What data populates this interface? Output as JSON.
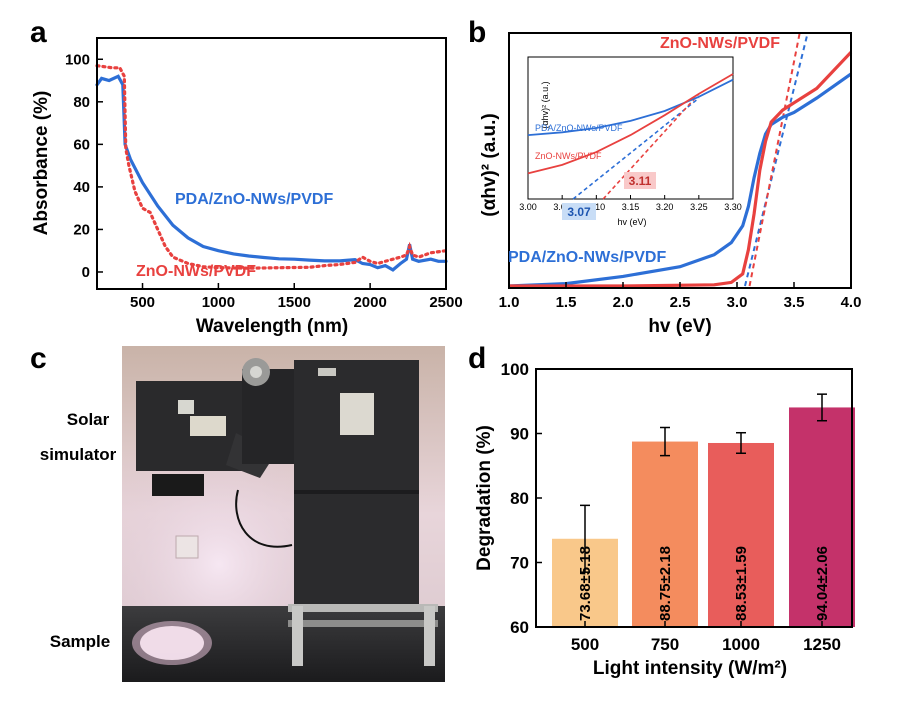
{
  "colors": {
    "blue": "#2d6fd6",
    "red": "#e8413f",
    "bar500": "#f9c88a",
    "bar750": "#f48c5e",
    "bar1000": "#e85d5b",
    "bar1250": "#c4326a"
  },
  "panels": {
    "a": "a",
    "b": "b",
    "c": "c",
    "d": "d"
  },
  "photo": {
    "label_solar_1": "Solar",
    "label_solar_2": "simulator",
    "label_sample": "Sample"
  },
  "chart_data": [
    {
      "panel": "a",
      "type": "line",
      "xlabel": "Wavelength (nm)",
      "ylabel": "Absorbance (%)",
      "xlim": [
        200,
        2500
      ],
      "ylim": [
        -8,
        110
      ],
      "xticks": [
        500,
        1000,
        1500,
        2000,
        2500
      ],
      "yticks": [
        0,
        20,
        40,
        60,
        80,
        100
      ],
      "series": [
        {
          "name": "PDA/ZnO-NWs/PVDF",
          "style": "solid",
          "color": "#2d6fd6",
          "points": [
            [
              200,
              88
            ],
            [
              230,
              91
            ],
            [
              280,
              90
            ],
            [
              340,
              92
            ],
            [
              370,
              88
            ],
            [
              385,
              60
            ],
            [
              420,
              53
            ],
            [
              500,
              42
            ],
            [
              600,
              31
            ],
            [
              700,
              22
            ],
            [
              800,
              16
            ],
            [
              900,
              12
            ],
            [
              1000,
              10
            ],
            [
              1100,
              8.5
            ],
            [
              1200,
              7.5
            ],
            [
              1300,
              6.8
            ],
            [
              1400,
              6.2
            ],
            [
              1500,
              6
            ],
            [
              1600,
              5.6
            ],
            [
              1700,
              5.2
            ],
            [
              1800,
              5.2
            ],
            [
              1900,
              5.8
            ],
            [
              1950,
              4
            ],
            [
              2000,
              3.5
            ],
            [
              2050,
              2
            ],
            [
              2100,
              3
            ],
            [
              2150,
              1
            ],
            [
              2200,
              4
            ],
            [
              2240,
              6
            ],
            [
              2260,
              13
            ],
            [
              2280,
              6
            ],
            [
              2320,
              5
            ],
            [
              2400,
              6
            ],
            [
              2450,
              5
            ],
            [
              2500,
              5
            ]
          ]
        },
        {
          "name": "ZnO-NWs/PVDF",
          "style": "dotted",
          "color": "#e8413f",
          "points": [
            [
              200,
              97
            ],
            [
              300,
              96
            ],
            [
              350,
              96
            ],
            [
              380,
              92
            ],
            [
              390,
              58
            ],
            [
              410,
              50
            ],
            [
              450,
              38
            ],
            [
              500,
              30
            ],
            [
              550,
              28
            ],
            [
              600,
              20
            ],
            [
              650,
              12
            ],
            [
              700,
              7
            ],
            [
              800,
              4
            ],
            [
              900,
              2.5
            ],
            [
              1000,
              2
            ],
            [
              1200,
              1.8
            ],
            [
              1400,
              2
            ],
            [
              1600,
              2.2
            ],
            [
              1700,
              3
            ],
            [
              1800,
              3.5
            ],
            [
              1900,
              4.5
            ],
            [
              1950,
              7
            ],
            [
              2000,
              5
            ],
            [
              2050,
              4
            ],
            [
              2100,
              5
            ],
            [
              2150,
              6
            ],
            [
              2200,
              7
            ],
            [
              2240,
              8
            ],
            [
              2260,
              12
            ],
            [
              2280,
              8
            ],
            [
              2320,
              7
            ],
            [
              2400,
              9
            ],
            [
              2500,
              10
            ]
          ]
        }
      ]
    },
    {
      "panel": "b",
      "type": "line",
      "xlabel": "hv (eV)",
      "ylabel": "(αhv)² (a.u.)",
      "xlim": [
        1.0,
        4.0
      ],
      "ylim": [
        0,
        1
      ],
      "xticks": [
        "1.0",
        "1.5",
        "2.0",
        "2.5",
        "3.0",
        "3.5",
        "4.0"
      ],
      "series": [
        {
          "name": "PDA/ZnO-NWs/PVDF",
          "style": "solid",
          "color": "#2d6fd6",
          "points": [
            [
              1.0,
              0.0
            ],
            [
              1.5,
              0.01
            ],
            [
              2.0,
              0.04
            ],
            [
              2.5,
              0.08
            ],
            [
              2.8,
              0.13
            ],
            [
              2.95,
              0.18
            ],
            [
              3.05,
              0.25
            ],
            [
              3.1,
              0.33
            ],
            [
              3.15,
              0.45
            ],
            [
              3.2,
              0.55
            ],
            [
              3.25,
              0.63
            ],
            [
              3.3,
              0.67
            ],
            [
              3.4,
              0.7
            ],
            [
              3.5,
              0.72
            ],
            [
              3.7,
              0.78
            ],
            [
              4.0,
              0.88
            ]
          ]
        },
        {
          "name": "ZnO-NWs/PVDF",
          "style": "solid",
          "color": "#e8413f",
          "points": [
            [
              1.0,
              0.0
            ],
            [
              2.0,
              0.0
            ],
            [
              2.8,
              0.005
            ],
            [
              2.95,
              0.015
            ],
            [
              3.05,
              0.05
            ],
            [
              3.1,
              0.15
            ],
            [
              3.15,
              0.3
            ],
            [
              3.2,
              0.48
            ],
            [
              3.25,
              0.6
            ],
            [
              3.3,
              0.68
            ],
            [
              3.4,
              0.73
            ],
            [
              3.5,
              0.76
            ],
            [
              3.7,
              0.82
            ],
            [
              4.0,
              0.97
            ]
          ]
        }
      ],
      "fit_lines": [
        {
          "color": "#2d6fd6",
          "from": [
            3.07,
            0.0
          ],
          "to": [
            3.62,
            1.06
          ]
        },
        {
          "color": "#e8413f",
          "from": [
            3.11,
            0.0
          ],
          "to": [
            3.55,
            1.06
          ]
        }
      ],
      "labels": {
        "red": "ZnO-NWs/PVDF",
        "blue": "PDA/ZnO-NWs/PVDF"
      },
      "inset": {
        "xlabel": "hv (eV)",
        "ylabel": "(αhv)² (a.u.)",
        "xlim": [
          3.0,
          3.3
        ],
        "xticks": [
          "3.00",
          "3.05",
          "3.10",
          "3.15",
          "3.20",
          "3.25",
          "3.30"
        ],
        "legend": [
          "PDA/ZnO-NWs/PVDF",
          "ZnO-NWs/PVDF"
        ],
        "series": [
          {
            "name": "PDA/ZnO-NWs/PVDF",
            "color": "#2d6fd6",
            "points": [
              [
                3.0,
                0.45
              ],
              [
                3.05,
                0.47
              ],
              [
                3.1,
                0.5
              ],
              [
                3.15,
                0.55
              ],
              [
                3.2,
                0.62
              ],
              [
                3.25,
                0.72
              ],
              [
                3.3,
                0.84
              ]
            ]
          },
          {
            "name": "ZnO-NWs/PVDF",
            "color": "#e8413f",
            "points": [
              [
                3.0,
                0.18
              ],
              [
                3.05,
                0.24
              ],
              [
                3.1,
                0.33
              ],
              [
                3.15,
                0.45
              ],
              [
                3.2,
                0.59
              ],
              [
                3.25,
                0.74
              ],
              [
                3.3,
                0.88
              ]
            ]
          }
        ],
        "fit_lines": [
          {
            "color": "#2d6fd6",
            "from": [
              3.066,
              0.0
            ],
            "to": [
              3.25,
              0.71
            ]
          },
          {
            "color": "#e8413f",
            "from": [
              3.11,
              0.0
            ],
            "to": [
              3.25,
              0.74
            ]
          }
        ],
        "annotations": [
          {
            "text": "3.07",
            "color": "#2d6fd6"
          },
          {
            "text": "3.11",
            "color": "#e8413f"
          }
        ]
      }
    },
    {
      "panel": "d",
      "type": "bar",
      "xlabel": "Light intensity (W/m²)",
      "ylabel": "Degradation (%)",
      "ylim": [
        60,
        100
      ],
      "yticks": [
        60,
        70,
        80,
        90,
        100
      ],
      "categories": [
        "500",
        "750",
        "1000",
        "1250"
      ],
      "values": [
        73.68,
        88.75,
        88.53,
        94.04
      ],
      "errors": [
        5.18,
        2.18,
        1.59,
        2.06
      ],
      "bar_labels": [
        "73.68±5.18",
        "88.75±2.18",
        "88.53±1.59",
        "94.04±2.06"
      ]
    }
  ]
}
